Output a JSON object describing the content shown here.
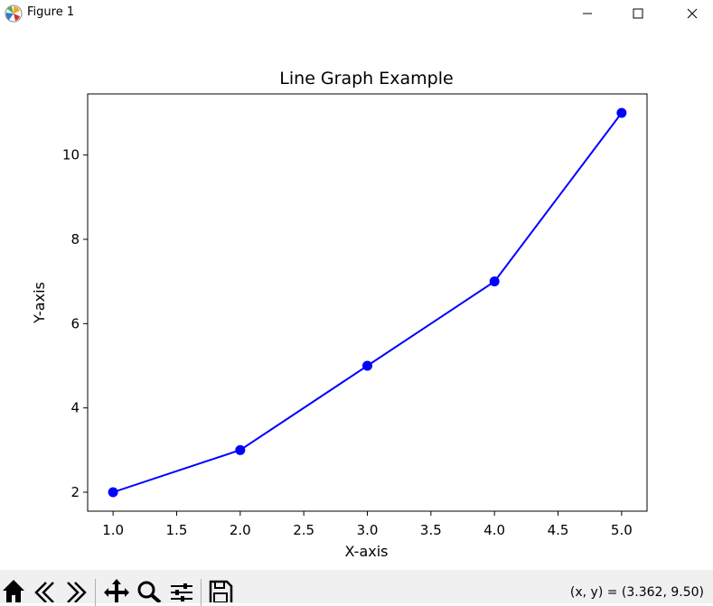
{
  "window": {
    "title": "Figure 1",
    "app_icon": "matplotlib-icon",
    "controls": [
      "minimize-icon",
      "maximize-icon",
      "close-icon"
    ]
  },
  "toolbar": {
    "buttons": [
      "home-icon",
      "back-icon",
      "forward-icon",
      "pan-icon",
      "zoom-icon",
      "configure-subplots-icon",
      "save-icon"
    ],
    "coords_text": "(x, y) = (3.362, 9.50)"
  },
  "chart_data": {
    "type": "line",
    "title": "Line Graph Example",
    "xlabel": "X-axis",
    "ylabel": "Y-axis",
    "x": [
      1,
      2,
      3,
      4,
      5
    ],
    "y": [
      2,
      3,
      5,
      7,
      11
    ],
    "xlim": [
      0.8,
      5.2
    ],
    "ylim": [
      1.55,
      11.45
    ],
    "xticks": [
      "1.0",
      "1.5",
      "2.0",
      "2.5",
      "3.0",
      "3.5",
      "4.0",
      "4.5",
      "5.0"
    ],
    "yticks": [
      "2",
      "4",
      "6",
      "8",
      "10"
    ],
    "color": "#0000ff",
    "marker": "circle",
    "grid": false,
    "legend": false
  }
}
